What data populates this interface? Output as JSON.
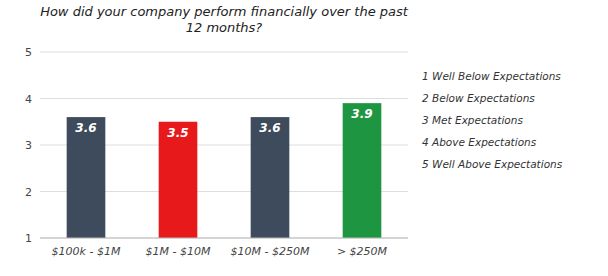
{
  "chart_data": {
    "type": "bar",
    "title": "How did your company perform financially over the past\n12 months?",
    "categories": [
      "$100k - $1M",
      "$1M - $10M",
      "$10M - $250M",
      "> $250M"
    ],
    "values": [
      3.6,
      3.5,
      3.6,
      3.9
    ],
    "colors": [
      "#3d4b5c",
      "#e8191a",
      "#3d4b5c",
      "#1e9641"
    ],
    "ylim": [
      1,
      5
    ],
    "yticks": [
      1,
      2,
      3,
      4,
      5
    ],
    "grid": true,
    "data_labels": true,
    "annotations": [
      "1  Well Below Expectations",
      "2  Below Expectations",
      "3  Met Expectations",
      "4  Above Expectations",
      "5  Well Above Expectations"
    ]
  }
}
